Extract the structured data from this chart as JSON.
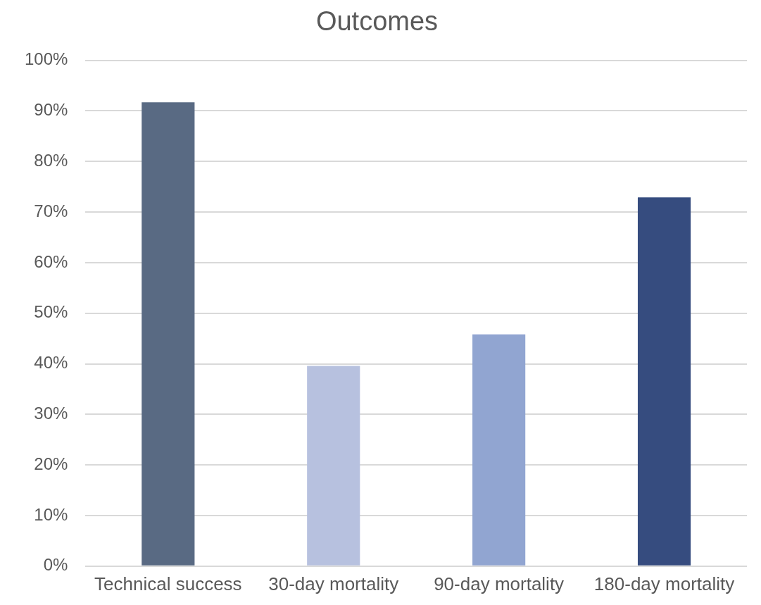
{
  "chart_data": {
    "type": "bar",
    "title": "Outcomes",
    "categories": [
      "Technical success",
      "30-day mortality",
      "90-day mortality",
      "180-day mortality"
    ],
    "values": [
      91.7,
      39.6,
      45.8,
      72.9
    ],
    "colors": [
      "#596a83",
      "#b7c1df",
      "#91a5d1",
      "#364c7f"
    ],
    "ylim": [
      0,
      100
    ],
    "yticks": [
      {
        "value": 0,
        "label": "0%"
      },
      {
        "value": 10,
        "label": "10%"
      },
      {
        "value": 20,
        "label": "20%"
      },
      {
        "value": 30,
        "label": "30%"
      },
      {
        "value": 40,
        "label": "40%"
      },
      {
        "value": 50,
        "label": "50%"
      },
      {
        "value": 60,
        "label": "60%"
      },
      {
        "value": 70,
        "label": "70%"
      },
      {
        "value": 80,
        "label": "80%"
      },
      {
        "value": 90,
        "label": "90%"
      },
      {
        "value": 100,
        "label": "100%"
      }
    ],
    "grid": "y"
  }
}
